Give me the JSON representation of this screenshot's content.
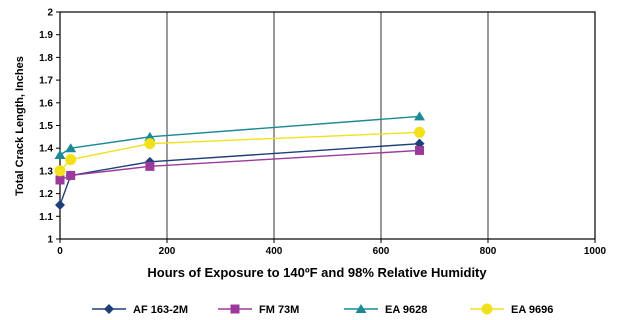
{
  "chart_data": {
    "type": "line",
    "title": "",
    "xlabel": "Hours of Exposure to 140ºF and 98% Relative Humidity",
    "ylabel": "Total Crack Length, Inches",
    "xlim": [
      0,
      1000
    ],
    "ylim": [
      1,
      2
    ],
    "x_ticks": [
      "0",
      "200",
      "400",
      "600",
      "800",
      "1000"
    ],
    "y_ticks": [
      "1",
      "1.1",
      "1.2",
      "1.3",
      "1.4",
      "1.5",
      "1.6",
      "1.7",
      "1.8",
      "1.9",
      "2"
    ],
    "grid": "vertical",
    "legend_position": "bottom",
    "series": [
      {
        "name": "AF 163-2M",
        "marker": "diamond",
        "color": "#1f3f78",
        "points": [
          [
            0,
            1.15
          ],
          [
            20,
            1.28
          ],
          [
            168,
            1.34
          ],
          [
            672,
            1.42
          ]
        ]
      },
      {
        "name": "FM 73M",
        "marker": "square",
        "color": "#9b3a9b",
        "points": [
          [
            0,
            1.26
          ],
          [
            20,
            1.28
          ],
          [
            168,
            1.32
          ],
          [
            672,
            1.39
          ]
        ]
      },
      {
        "name": "EA 9628",
        "marker": "triangle",
        "color": "#1a8a95",
        "points": [
          [
            0,
            1.37
          ],
          [
            20,
            1.4
          ],
          [
            168,
            1.45
          ],
          [
            672,
            1.54
          ]
        ]
      },
      {
        "name": "EA 9696",
        "marker": "circle",
        "color": "#f2e11a",
        "points": [
          [
            0,
            1.3
          ],
          [
            20,
            1.35
          ],
          [
            168,
            1.42
          ],
          [
            672,
            1.47
          ]
        ]
      }
    ]
  }
}
